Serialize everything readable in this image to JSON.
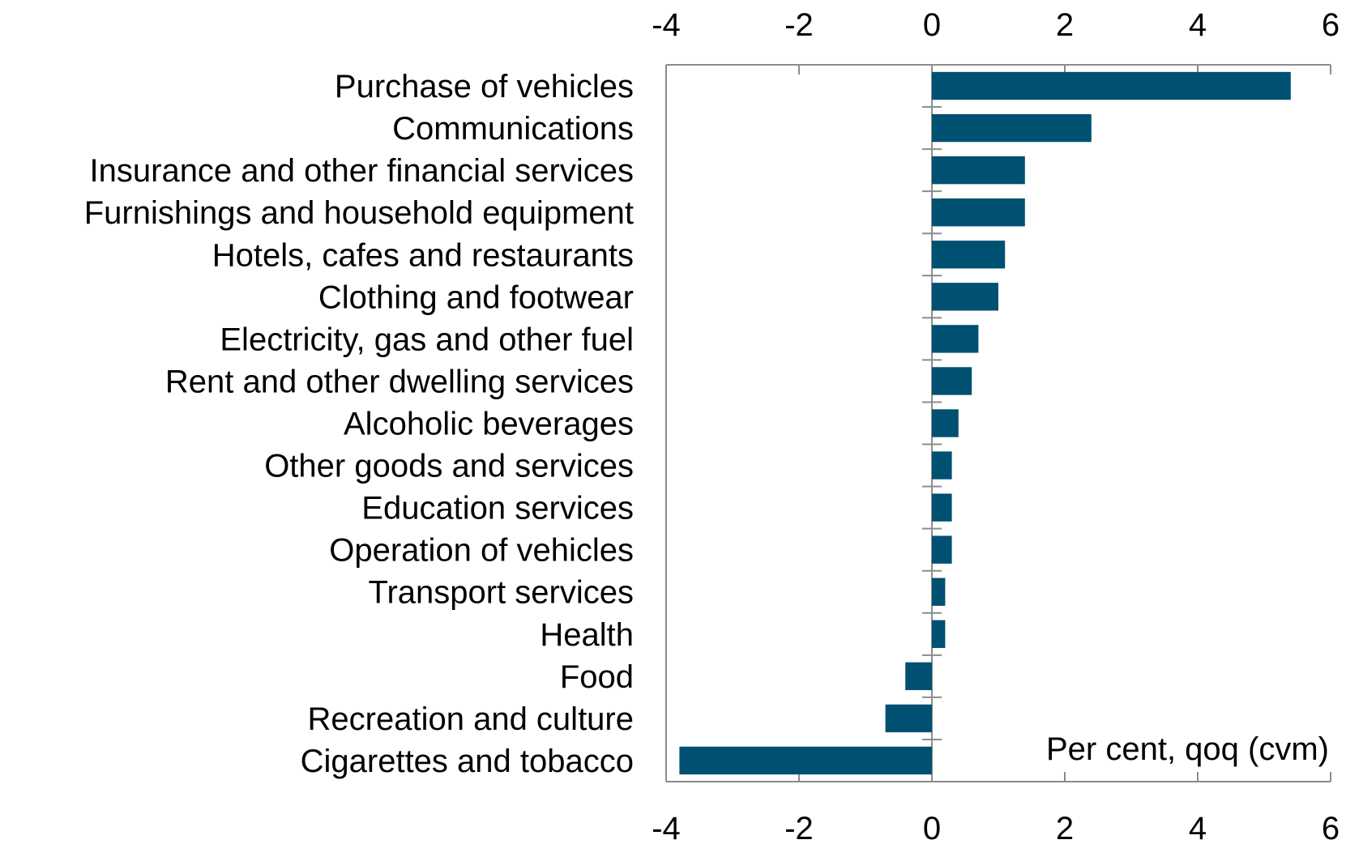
{
  "chart_data": {
    "type": "bar",
    "orientation": "horizontal",
    "categories": [
      "Purchase of vehicles",
      "Communications",
      "Insurance and other financial services",
      "Furnishings and household equipment",
      "Hotels, cafes and restaurants",
      "Clothing and footwear",
      "Electricity, gas and other fuel",
      "Rent and other dwelling services",
      "Alcoholic beverages",
      "Other goods and services",
      "Education services",
      "Operation of vehicles",
      "Transport services",
      "Health",
      "Food",
      "Recreation and culture",
      "Cigarettes and tobacco"
    ],
    "values": [
      5.4,
      2.4,
      1.4,
      1.4,
      1.1,
      1.0,
      0.7,
      0.6,
      0.4,
      0.3,
      0.3,
      0.3,
      0.2,
      0.2,
      -0.4,
      -0.7,
      -3.8
    ],
    "xlim": [
      -4,
      6
    ],
    "xticks": [
      "-4",
      "-2",
      "0",
      "2",
      "4",
      "6"
    ],
    "axes_top_and_bottom": true,
    "unit_annotation": "Per cent, qoq (cvm)",
    "title": "",
    "xlabel": "",
    "ylabel": "",
    "grid": false,
    "legend": false,
    "bar_color": "#005072",
    "axis_color": "#8c8c8c"
  }
}
